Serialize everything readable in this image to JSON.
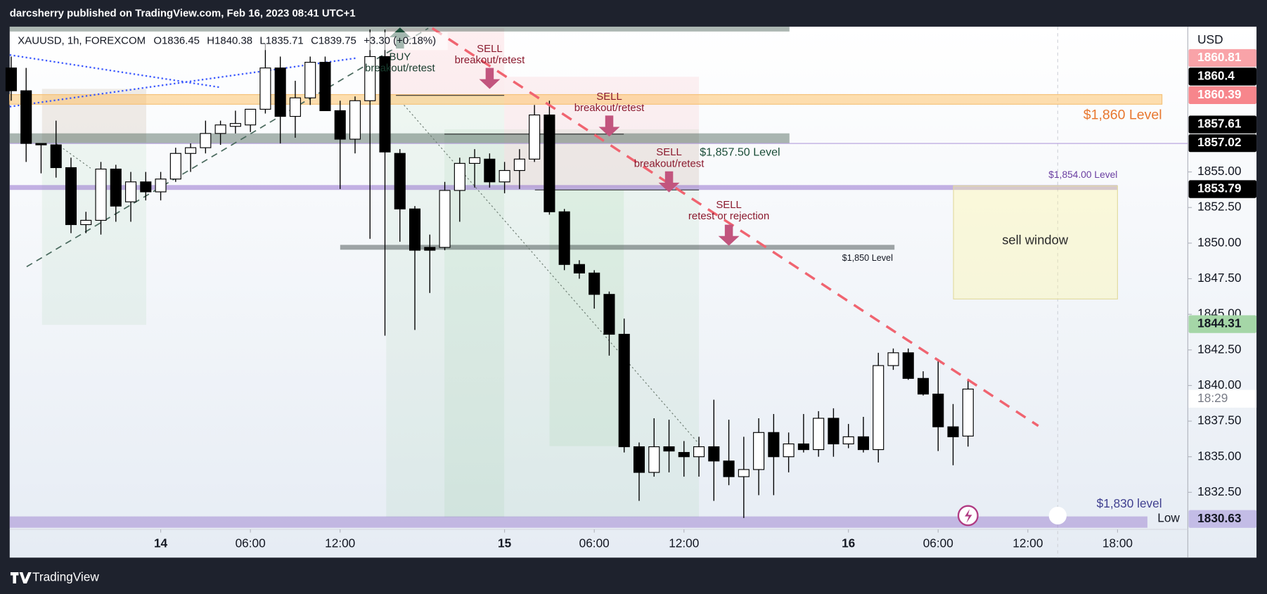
{
  "header": {
    "published": "darcsherry published on TradingView.com, Feb 16, 2023 08:41 UTC+1"
  },
  "footer": {
    "brand": "TradingView"
  },
  "chart_data": {
    "type": "candlestick",
    "title": "XAUUSD, 1h, FOREXCOM",
    "ohlc_labels": [
      "O1836.45",
      "H1840.38",
      "L1835.71",
      "C1839.75",
      "+3.30 (+0.18%)"
    ],
    "currency": "USD",
    "x": [
      -10,
      -9,
      -8,
      -7,
      -6,
      -5,
      -4,
      -3,
      -2,
      -1,
      0,
      1,
      2,
      3,
      4,
      5,
      6,
      7,
      8,
      9,
      10,
      11,
      12,
      13,
      14,
      15,
      16,
      17,
      18,
      19,
      20,
      21,
      22,
      23,
      24,
      25,
      26,
      27,
      28,
      29,
      30,
      31,
      32,
      33,
      34,
      35,
      36,
      37,
      38,
      39,
      40,
      41,
      42,
      43,
      44,
      45,
      46,
      47,
      48,
      49,
      50,
      51,
      52,
      53,
      54
    ],
    "open": [
      1862.3,
      1860.7,
      1857.0,
      1856.9,
      1855.3,
      1851.3,
      1851.6,
      1855.2,
      1852.9,
      1854.3,
      1853.6,
      1854.5,
      1856.3,
      1856.7,
      1857.7,
      1858.2,
      1858.3,
      1859.4,
      1862.3,
      1858.9,
      1860.2,
      1862.7,
      1859.3,
      1857.3,
      1860.0,
      1863.1,
      1856.3,
      1852.4,
      1849.7,
      1849.7,
      1853.7,
      1855.6,
      1855.9,
      1854.3,
      1855.1,
      1855.9,
      1859.0,
      1852.2,
      1848.5,
      1847.9,
      1846.4,
      1843.6,
      1835.7,
      1833.9,
      1835.7,
      1835.3,
      1835.0,
      1835.7,
      1834.7,
      1833.6,
      1834.1,
      1836.7,
      1835.0,
      1835.9,
      1835.5,
      1837.7,
      1835.9,
      1836.4,
      1835.5,
      1841.4,
      1842.3,
      1840.5,
      1839.4,
      1837.1,
      1836.45
    ],
    "high": [
      1863.1,
      1862.3,
      1857.0,
      1858.6,
      1856.0,
      1852.2,
      1855.7,
      1855.5,
      1855.0,
      1855.0,
      1855.0,
      1856.7,
      1857.0,
      1858.6,
      1858.6,
      1859.3,
      1859.4,
      1864.0,
      1863.1,
      1861.4,
      1863.1,
      1863.1,
      1860.0,
      1860.3,
      1865.0,
      1865.0,
      1856.6,
      1852.6,
      1850.6,
      1854.3,
      1856.0,
      1856.6,
      1856.3,
      1855.7,
      1856.6,
      1859.7,
      1860.0,
      1852.4,
      1848.8,
      1848.1,
      1846.6,
      1844.7,
      1836.0,
      1837.7,
      1837.6,
      1836.1,
      1836.4,
      1839.0,
      1837.6,
      1836.4,
      1837.7,
      1838.0,
      1836.7,
      1838.0,
      1838.2,
      1838.4,
      1837.3,
      1837.8,
      1842.3,
      1842.6,
      1842.6,
      1841.0,
      1841.7,
      1838.7,
      1840.38
    ],
    "low": [
      1860.0,
      1855.7,
      1854.9,
      1854.6,
      1850.7,
      1850.7,
      1850.6,
      1851.5,
      1851.5,
      1853.0,
      1853.0,
      1854.3,
      1855.0,
      1856.3,
      1856.9,
      1857.7,
      1857.8,
      1859.1,
      1857.0,
      1857.4,
      1859.7,
      1859.3,
      1853.8,
      1856.3,
      1850.3,
      1843.5,
      1850.1,
      1843.9,
      1846.5,
      1849.5,
      1851.5,
      1853.9,
      1853.9,
      1853.5,
      1853.8,
      1855.7,
      1852.0,
      1848.1,
      1847.5,
      1845.4,
      1842.1,
      1835.3,
      1831.9,
      1833.6,
      1833.9,
      1833.6,
      1833.6,
      1831.9,
      1833.0,
      1830.7,
      1832.3,
      1832.3,
      1833.9,
      1835.3,
      1835.0,
      1835.0,
      1835.6,
      1835.3,
      1834.6,
      1841.1,
      1840.4,
      1839.3,
      1835.4,
      1834.4,
      1835.71
    ],
    "close": [
      1860.7,
      1857.0,
      1856.9,
      1855.3,
      1851.3,
      1851.6,
      1855.2,
      1852.6,
      1854.3,
      1853.6,
      1854.5,
      1856.3,
      1856.7,
      1857.7,
      1858.3,
      1858.4,
      1859.4,
      1862.3,
      1858.9,
      1860.2,
      1862.7,
      1859.3,
      1857.3,
      1860.0,
      1863.1,
      1856.4,
      1852.4,
      1849.5,
      1849.5,
      1853.7,
      1855.6,
      1856.0,
      1854.3,
      1855.1,
      1855.9,
      1859.0,
      1852.2,
      1848.5,
      1847.9,
      1846.4,
      1843.6,
      1835.7,
      1833.9,
      1835.7,
      1835.4,
      1835.0,
      1835.7,
      1834.7,
      1833.6,
      1834.1,
      1836.7,
      1835.0,
      1835.9,
      1835.5,
      1837.7,
      1835.9,
      1836.4,
      1835.5,
      1841.4,
      1842.3,
      1840.5,
      1839.4,
      1837.1,
      1836.4,
      1839.75
    ],
    "up_color": "#ffffff",
    "down_color": "#000000",
    "xlim": [
      -10.1,
      68.7
    ],
    "xticks": [
      {
        "value": 0,
        "label": "14"
      },
      {
        "value": 6,
        "label": "06:00"
      },
      {
        "value": 12,
        "label": "12:00"
      },
      {
        "value": 23,
        "label": "15"
      },
      {
        "value": 29,
        "label": "06:00"
      },
      {
        "value": 35,
        "label": "12:00"
      },
      {
        "value": 46,
        "label": "16"
      },
      {
        "value": 52,
        "label": "06:00"
      },
      {
        "value": 58,
        "label": "12:00"
      },
      {
        "value": 64,
        "label": "18:00"
      }
    ],
    "ylim": [
      1829.9,
      1865.2
    ],
    "yticks": [
      {
        "value": 1855,
        "label": "1855.00"
      },
      {
        "value": 1852.5,
        "label": "1852.50"
      },
      {
        "value": 1850,
        "label": "1850.00"
      },
      {
        "value": 1847.5,
        "label": "1847.50"
      },
      {
        "value": 1845,
        "label": "1845.00"
      },
      {
        "value": 1842.5,
        "label": "1842.50"
      },
      {
        "value": 1840,
        "label": "1840.00"
      },
      {
        "value": 1837.5,
        "label": "1837.50"
      },
      {
        "value": 1835,
        "label": "1835.00"
      },
      {
        "value": 1832.5,
        "label": "1832.50"
      }
    ],
    "price_labels": [
      {
        "value": 1860.81,
        "color": "#f9a3a8",
        "text_color": "#ffffff"
      },
      {
        "value": 1860.4,
        "color": "#000000",
        "text_color": "#ffffff"
      },
      {
        "value": 1860.39,
        "color": "#f7868c",
        "text_color": "#ffffff"
      },
      {
        "value": 1857.61,
        "color": "#000000",
        "text_color": "#ffffff"
      },
      {
        "value": 1857.02,
        "color": "#000000",
        "text_color": "#ffffff"
      },
      {
        "value": 1853.79,
        "color": "#000000",
        "text_color": "#ffffff"
      },
      {
        "value": 1844.31,
        "color": "#a5d6a7",
        "text_color": "#131722"
      },
      {
        "value": 1830.63,
        "color": "#c3bce6",
        "text_color": "#131722"
      }
    ],
    "countdown": "18:29",
    "low_label": "Low",
    "levels": [
      "$1,860 Level",
      "$1,857.50 Level",
      "$1,854.00 Level",
      "$1,850 Level",
      "$1,830 level"
    ],
    "box_label": "sell window",
    "signals": [
      [
        "BUY",
        "breakout/retest"
      ],
      [
        "SELL",
        "breakout/retest"
      ],
      [
        "SELL",
        "breakout/retest"
      ],
      [
        "SELL",
        "breakout/retest"
      ],
      [
        "SELL",
        "retest or rejection"
      ]
    ]
  }
}
